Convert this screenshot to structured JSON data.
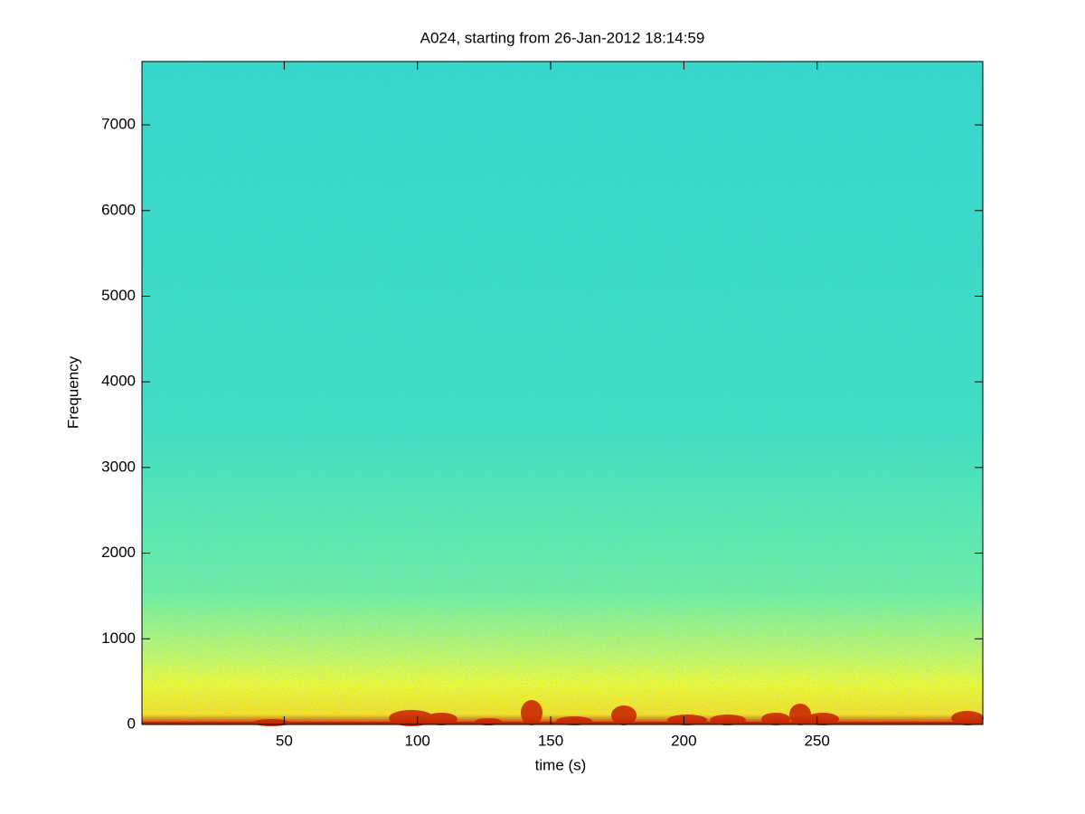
{
  "chart_data": {
    "type": "spectrogram",
    "title": "A024, starting from 26-Jan-2012 18:14:59",
    "x_label": "time (s)",
    "y_label": "Frequency",
    "xlim": [
      -3.4,
      312.2
    ],
    "xticks": [
      50,
      100,
      150,
      200,
      250
    ],
    "ylim": [
      0,
      7740
    ],
    "yticks": [
      0,
      1000,
      2000,
      3000,
      4000,
      5000,
      6000,
      7000
    ]
  }
}
